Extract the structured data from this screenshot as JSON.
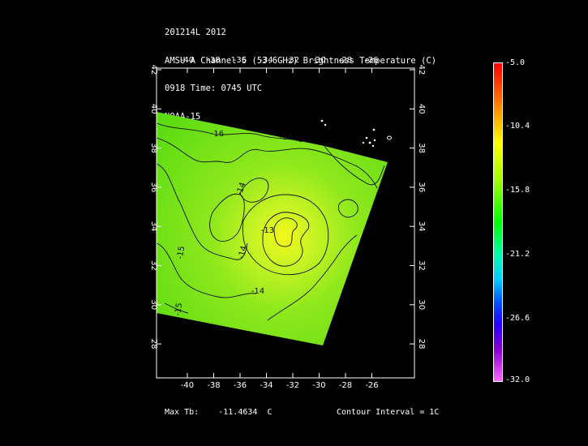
{
  "header": {
    "line1": "201214L 2012",
    "line2": "AMSU-A Channel 5 (53.6GHz) Brightness Temperature (C)",
    "line3": "0918 Time: 0745 UTC",
    "line4": "NOAA-15"
  },
  "map": {
    "lon_ticks": [
      "-40",
      "-38",
      "-36",
      "-34",
      "-32",
      "-30",
      "-28",
      "-26"
    ],
    "lat_ticks": [
      "42",
      "40",
      "38",
      "36",
      "34",
      "32",
      "30",
      "28"
    ],
    "contour_labels": [
      "-16",
      "-16",
      "-14",
      "-13",
      "-14",
      "-15",
      "-14",
      "-15"
    ]
  },
  "colorbar": {
    "labels": [
      "-5.0",
      "-10.4",
      "-15.8",
      "-21.2",
      "-26.6",
      "-32.0"
    ],
    "colors": [
      "#ff0000",
      "#ff7f00",
      "#ffff00",
      "#00ff00",
      "#00ffaa",
      "#00ccff",
      "#0055ff",
      "#2200ff",
      "#8800cc",
      "#ff66ff"
    ]
  },
  "footer": {
    "max_label": "Max Tb:",
    "max_value": "-11.4634",
    "max_unit": "C",
    "contour_interval": "Contour Interval = 1C"
  }
}
